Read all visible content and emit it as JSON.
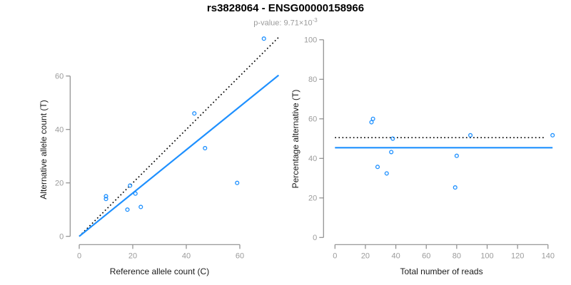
{
  "header": {
    "title": "rs3828064 - ENSG00000158966",
    "subtitle_main": "p-value: 9.71×10",
    "subtitle_exponent": "-3"
  },
  "colors": {
    "point": "#1E90FF",
    "fit_line": "#1E90FF",
    "null_line": "#000000",
    "axis": "#8c8c8c",
    "tick_label": "#9b9b9b",
    "axis_title": "#1a1a1a",
    "title": "#000000",
    "subtitle": "#9b9b9b"
  },
  "chart_data": [
    {
      "type": "scatter",
      "xlabel": "Reference allele count (C)",
      "ylabel": "Alternative allele count (T)",
      "xticks": [
        0,
        20,
        40,
        60
      ],
      "yticks": [
        0,
        20,
        40,
        60
      ],
      "xlim": [
        0,
        75.5
      ],
      "ylim": [
        0,
        75.5
      ],
      "grid": false,
      "legend": "none",
      "points": [
        {
          "x": 69,
          "y": 74
        },
        {
          "x": 43,
          "y": 46
        },
        {
          "x": 47,
          "y": 33
        },
        {
          "x": 59,
          "y": 20
        },
        {
          "x": 19,
          "y": 19
        },
        {
          "x": 21,
          "y": 16
        },
        {
          "x": 10,
          "y": 15
        },
        {
          "x": 10,
          "y": 14
        },
        {
          "x": 18,
          "y": 10
        },
        {
          "x": 23,
          "y": 11
        }
      ],
      "lines": [
        {
          "name": "null-line",
          "style": "dotted",
          "color": "#000000",
          "x1": 0,
          "y1": 0,
          "x2": 74.5,
          "y2": 74.5
        },
        {
          "name": "fit-line",
          "style": "solid",
          "color": "#1E90FF",
          "x1": 0,
          "y1": 0,
          "x2": 74.5,
          "y2": 60.3
        }
      ]
    },
    {
      "type": "scatter",
      "xlabel": "Total number of reads",
      "ylabel": "Percentage alternative (T)",
      "xticks": [
        0,
        20,
        40,
        60,
        80,
        100,
        120,
        140
      ],
      "yticks": [
        0,
        20,
        40,
        60,
        80,
        100
      ],
      "xlim": [
        0,
        145
      ],
      "ylim": [
        0,
        100
      ],
      "grid": false,
      "legend": "none",
      "points": [
        {
          "x": 143,
          "y": 51.7
        },
        {
          "x": 89,
          "y": 51.7
        },
        {
          "x": 80,
          "y": 41.3
        },
        {
          "x": 79,
          "y": 25.3
        },
        {
          "x": 38,
          "y": 50
        },
        {
          "x": 37,
          "y": 43.2
        },
        {
          "x": 25,
          "y": 60
        },
        {
          "x": 24,
          "y": 58.3
        },
        {
          "x": 28,
          "y": 35.7
        },
        {
          "x": 34,
          "y": 32.4
        }
      ],
      "lines": [
        {
          "name": "null-line",
          "style": "dotted",
          "color": "#000000",
          "x1": 0,
          "y1": 50.5,
          "x2": 138,
          "y2": 50.5
        },
        {
          "name": "fit-line",
          "style": "solid",
          "color": "#1E90FF",
          "x1": 0,
          "y1": 45.4,
          "x2": 143,
          "y2": 45.4
        }
      ]
    }
  ]
}
